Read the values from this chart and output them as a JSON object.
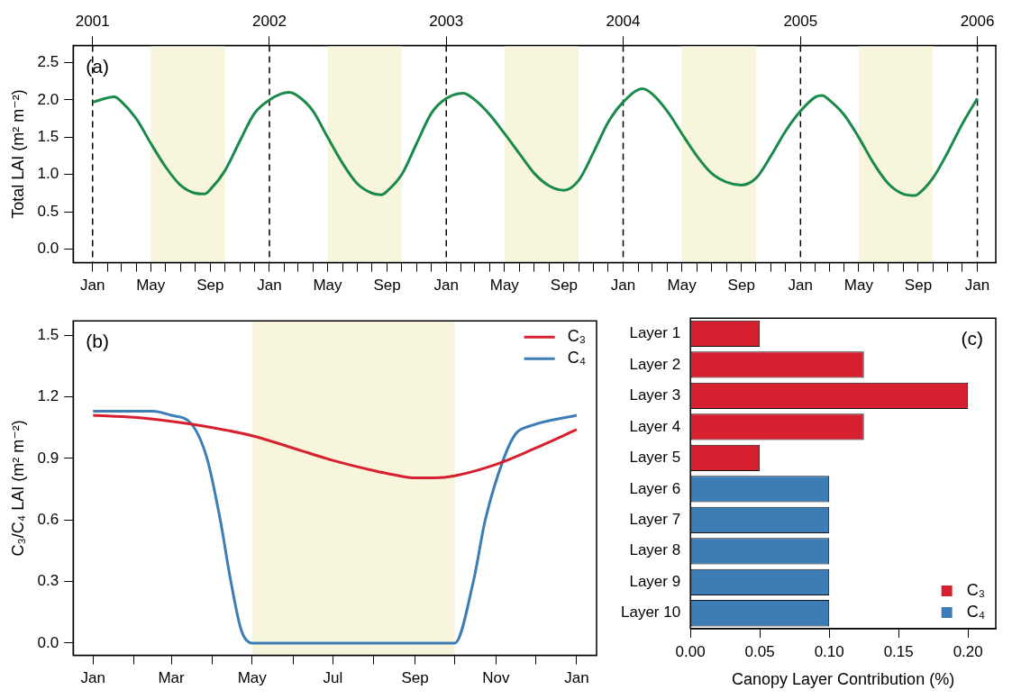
{
  "chart_data": [
    {
      "type": "line",
      "ylabel": "Total LAI (m² m⁻²)",
      "annotations": [
        "(a)"
      ],
      "grid": false,
      "legend": false,
      "x": [
        "2001-01",
        "2001-02-15",
        "2001-03",
        "2001-04",
        "2001-05",
        "2001-06",
        "2001-07",
        "2001-08",
        "2001-08-20",
        "2001-09",
        "2001-10",
        "2001-11",
        "2001-12",
        "2002-01",
        "2002-02-10",
        "2002-03",
        "2002-04",
        "2002-05",
        "2002-06",
        "2002-07",
        "2002-08",
        "2002-08-20",
        "2002-09",
        "2002-10",
        "2002-11",
        "2002-12",
        "2003-01",
        "2003-02-05",
        "2003-03",
        "2003-04",
        "2003-05",
        "2003-06",
        "2003-07",
        "2003-08",
        "2003-09",
        "2003-10",
        "2003-11",
        "2003-12",
        "2004-01",
        "2004-02-10",
        "2004-03",
        "2004-04",
        "2004-05",
        "2004-06",
        "2004-07",
        "2004-08",
        "2004-09",
        "2004-10",
        "2004-11",
        "2004-12",
        "2005-01",
        "2005-02",
        "2005-02-15",
        "2005-03",
        "2005-04",
        "2005-05",
        "2005-06",
        "2005-07",
        "2005-08",
        "2005-08-25",
        "2005-09",
        "2005-10",
        "2005-11",
        "2005-12",
        "2006-01"
      ],
      "series": [
        {
          "color": "#1a8a4a",
          "values": [
            1.97,
            2.04,
            1.98,
            1.75,
            1.42,
            1.1,
            0.86,
            0.75,
            0.74,
            0.8,
            1.05,
            1.45,
            1.82,
            2.0,
            2.1,
            2.05,
            1.85,
            1.5,
            1.15,
            0.88,
            0.75,
            0.73,
            0.78,
            1.0,
            1.42,
            1.82,
            2.02,
            2.09,
            2.0,
            1.8,
            1.55,
            1.28,
            1.02,
            0.85,
            0.79,
            0.92,
            1.3,
            1.7,
            1.97,
            2.15,
            2.08,
            1.85,
            1.55,
            1.25,
            1.02,
            0.9,
            0.86,
            0.95,
            1.25,
            1.58,
            1.85,
            2.04,
            2.06,
            2.0,
            1.8,
            1.5,
            1.15,
            0.88,
            0.74,
            0.72,
            0.74,
            0.95,
            1.3,
            1.68,
            2.02
          ]
        }
      ],
      "xlim": [
        "2000-11-22",
        "2006-02-08"
      ],
      "xticks": [
        {
          "value": "2001-01",
          "label": "Jan"
        },
        {
          "value": "2001-02",
          "label": null
        },
        {
          "value": "2001-03",
          "label": null
        },
        {
          "value": "2001-04",
          "label": null
        },
        {
          "value": "2001-05",
          "label": "May"
        },
        {
          "value": "2001-06",
          "label": null
        },
        {
          "value": "2001-07",
          "label": null
        },
        {
          "value": "2001-08",
          "label": null
        },
        {
          "value": "2001-09",
          "label": "Sep"
        },
        {
          "value": "2001-10",
          "label": null
        },
        {
          "value": "2001-11",
          "label": null
        },
        {
          "value": "2001-12",
          "label": null
        },
        {
          "value": "2002-01",
          "label": "Jan"
        },
        {
          "value": "2002-02",
          "label": null
        },
        {
          "value": "2002-03",
          "label": null
        },
        {
          "value": "2002-04",
          "label": null
        },
        {
          "value": "2002-05",
          "label": "May"
        },
        {
          "value": "2002-06",
          "label": null
        },
        {
          "value": "2002-07",
          "label": null
        },
        {
          "value": "2002-08",
          "label": null
        },
        {
          "value": "2002-09",
          "label": "Sep"
        },
        {
          "value": "2002-10",
          "label": null
        },
        {
          "value": "2002-11",
          "label": null
        },
        {
          "value": "2002-12",
          "label": null
        },
        {
          "value": "2003-01",
          "label": "Jan"
        },
        {
          "value": "2003-02",
          "label": null
        },
        {
          "value": "2003-03",
          "label": null
        },
        {
          "value": "2003-04",
          "label": null
        },
        {
          "value": "2003-05",
          "label": "May"
        },
        {
          "value": "2003-06",
          "label": null
        },
        {
          "value": "2003-07",
          "label": null
        },
        {
          "value": "2003-08",
          "label": null
        },
        {
          "value": "2003-09",
          "label": "Sep"
        },
        {
          "value": "2003-10",
          "label": null
        },
        {
          "value": "2003-11",
          "label": null
        },
        {
          "value": "2003-12",
          "label": null
        },
        {
          "value": "2004-01",
          "label": "Jan"
        },
        {
          "value": "2004-02",
          "label": null
        },
        {
          "value": "2004-03",
          "label": null
        },
        {
          "value": "2004-04",
          "label": null
        },
        {
          "value": "2004-05",
          "label": "May"
        },
        {
          "value": "2004-06",
          "label": null
        },
        {
          "value": "2004-07",
          "label": null
        },
        {
          "value": "2004-08",
          "label": null
        },
        {
          "value": "2004-09",
          "label": "Sep"
        },
        {
          "value": "2004-10",
          "label": null
        },
        {
          "value": "2004-11",
          "label": null
        },
        {
          "value": "2004-12",
          "label": null
        },
        {
          "value": "2005-01",
          "label": "Jan"
        },
        {
          "value": "2005-02",
          "label": null
        },
        {
          "value": "2005-03",
          "label": null
        },
        {
          "value": "2005-04",
          "label": null
        },
        {
          "value": "2005-05",
          "label": "May"
        },
        {
          "value": "2005-06",
          "label": null
        },
        {
          "value": "2005-07",
          "label": null
        },
        {
          "value": "2005-08",
          "label": null
        },
        {
          "value": "2005-09",
          "label": "Sep"
        },
        {
          "value": "2005-10",
          "label": null
        },
        {
          "value": "2005-11",
          "label": null
        },
        {
          "value": "2005-12",
          "label": null
        },
        {
          "value": "2006-01",
          "label": "Jan"
        }
      ],
      "x2lim": [
        "2000-11-22",
        "2006-02-08"
      ],
      "x2ticks": [
        {
          "value": "2001",
          "label": "2001"
        },
        {
          "value": "2002",
          "label": "2002"
        },
        {
          "value": "2003",
          "label": "2003"
        },
        {
          "value": "2004",
          "label": "2004"
        },
        {
          "value": "2005",
          "label": "2005"
        },
        {
          "value": "2006",
          "label": "2006"
        }
      ],
      "ylim": [
        -0.18,
        2.73
      ],
      "yticks": [
        {
          "value": 0,
          "label": "0.0"
        },
        {
          "value": 0.5,
          "label": "0.5"
        },
        {
          "value": 1,
          "label": "1.0"
        },
        {
          "value": 1.5,
          "label": "1.5"
        },
        {
          "value": 2,
          "label": "2.0"
        },
        {
          "value": 2.5,
          "label": "2.5"
        }
      ],
      "ref_lines": [
        {
          "axis": "x",
          "value": "2001",
          "line_style": "dashed",
          "color": "#000000"
        },
        {
          "axis": "x",
          "value": "2002",
          "line_style": "dashed",
          "color": "#000000"
        },
        {
          "axis": "x",
          "value": "2003",
          "line_style": "dashed",
          "color": "#000000"
        },
        {
          "axis": "x",
          "value": "2004",
          "line_style": "dashed",
          "color": "#000000"
        },
        {
          "axis": "x",
          "value": "2005",
          "line_style": "dashed",
          "color": "#000000"
        },
        {
          "axis": "x",
          "value": "2006",
          "line_style": "dashed",
          "color": "#000000"
        }
      ],
      "bands": [
        {
          "axis": "x",
          "from": "2001-05",
          "to": "2001-10",
          "color": "#f7f5dc"
        },
        {
          "axis": "x",
          "from": "2002-05",
          "to": "2002-10",
          "color": "#f7f5dc"
        },
        {
          "axis": "x",
          "from": "2003-05",
          "to": "2003-10",
          "color": "#f7f5dc"
        },
        {
          "axis": "x",
          "from": "2004-05",
          "to": "2004-10",
          "color": "#f7f5dc"
        },
        {
          "axis": "x",
          "from": "2005-05",
          "to": "2005-10",
          "color": "#f7f5dc"
        }
      ]
    },
    {
      "type": "line",
      "ylabel": "C₃/C₄ LAI (m² m⁻²)",
      "annotations": [
        "(b)"
      ],
      "grid": false,
      "legend": "top right",
      "series": [
        {
          "name": "C₃",
          "color": "#d7202f",
          "x": [
            "2001-01-01",
            "2001-02-01",
            "2001-03-01",
            "2001-04-01",
            "2001-05-01",
            "2001-06-01",
            "2001-07-01",
            "2001-08-01",
            "2001-08-16",
            "2001-09-01",
            "2001-09-16",
            "2001-10-01",
            "2001-11-01",
            "2001-12-01",
            "2002-01-01"
          ],
          "values": [
            1.11,
            1.1,
            1.08,
            1.05,
            1.01,
            0.95,
            0.89,
            0.84,
            0.82,
            0.805,
            0.805,
            0.815,
            0.87,
            0.95,
            1.04
          ]
        },
        {
          "name": "C₄",
          "color": "#3b7db4",
          "x": [
            "2001-01-01",
            "2001-02-01",
            "2001-02-15",
            "2001-03-01",
            "2001-03-16",
            "2001-03-28",
            "2001-04-07",
            "2001-04-15",
            "2001-04-23",
            "2001-05-01",
            "2001-07-01",
            "2001-10-01",
            "2001-10-15",
            "2001-10-24",
            "2001-11-07",
            "2001-11-16",
            "2001-11-28",
            "2002-01-01"
          ],
          "values": [
            1.13,
            1.13,
            1.13,
            1.11,
            1.07,
            0.9,
            0.6,
            0.3,
            0.06,
            0,
            0,
            0,
            0.3,
            0.6,
            0.9,
            1.02,
            1.06,
            1.11
          ]
        }
      ],
      "xlim": [
        "2000-12-17",
        "2002-01-16"
      ],
      "xticks": [
        {
          "value": "2001-01",
          "label": "Jan"
        },
        {
          "value": "2001-02",
          "label": null
        },
        {
          "value": "2001-03",
          "label": "Mar"
        },
        {
          "value": "2001-04",
          "label": null
        },
        {
          "value": "2001-05",
          "label": "May"
        },
        {
          "value": "2001-06",
          "label": null
        },
        {
          "value": "2001-07",
          "label": "Jul"
        },
        {
          "value": "2001-08",
          "label": null
        },
        {
          "value": "2001-09",
          "label": "Sep"
        },
        {
          "value": "2001-10",
          "label": null
        },
        {
          "value": "2001-11",
          "label": "Nov"
        },
        {
          "value": "2001-12",
          "label": null
        },
        {
          "value": "2002-01",
          "label": "Jan"
        }
      ],
      "ylim": [
        -0.06,
        1.57
      ],
      "yticks": [
        {
          "value": 0,
          "label": "0.0"
        },
        {
          "value": 0.3,
          "label": "0.3"
        },
        {
          "value": 0.6,
          "label": "0.6"
        },
        {
          "value": 0.9,
          "label": "0.9"
        },
        {
          "value": 1.2,
          "label": "1.2"
        },
        {
          "value": 1.5,
          "label": "1.5"
        }
      ],
      "bands": [
        {
          "axis": "x",
          "from": "2001-05",
          "to": "2001-10",
          "color": "#f7f5dc"
        }
      ]
    },
    {
      "type": "bar",
      "orientation": "horizontal",
      "xlabel": "Canopy Layer Contribution (%)",
      "annotations": [
        "(c)"
      ],
      "grid": false,
      "legend": "bottom right",
      "categories": [
        "Layer 1",
        "Layer 2",
        "Layer 3",
        "Layer 4",
        "Layer 5",
        "Layer 6",
        "Layer 7",
        "Layer 8",
        "Layer 9",
        "Layer 10"
      ],
      "series": [
        {
          "name": "C₃",
          "color": "#d7202f",
          "values": [
            0.05,
            0.125,
            0.2,
            0.125,
            0.05,
            null,
            null,
            null,
            null,
            null
          ]
        },
        {
          "name": "C₄",
          "color": "#3b7db4",
          "values": [
            null,
            null,
            null,
            null,
            null,
            0.1,
            0.1,
            0.1,
            0.1,
            0.1
          ]
        }
      ],
      "xlim": [
        0,
        0.22
      ],
      "xticks": [
        {
          "value": 0,
          "label": "0.00"
        },
        {
          "value": 0.05,
          "label": "0.05"
        },
        {
          "value": 0.1,
          "label": "0.10"
        },
        {
          "value": 0.15,
          "label": "0.15"
        },
        {
          "value": 0.2,
          "label": "0.20"
        }
      ]
    }
  ]
}
